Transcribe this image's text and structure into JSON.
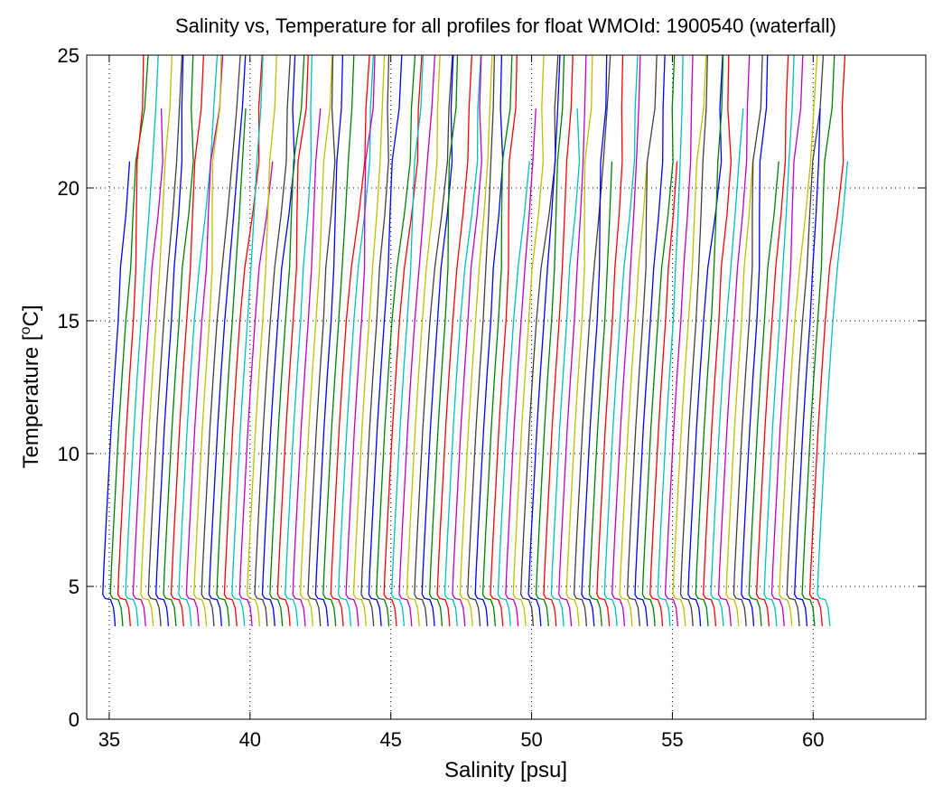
{
  "chart_data": {
    "type": "line",
    "title": "Salinity vs, Temperature for all profiles for float WMOId: 1900540 (waterfall)",
    "xlabel": "Salinity [psu]",
    "ylabel_main": "Temperature [",
    "ylabel_sup": "o",
    "ylabel_tail": "C]",
    "xlim": [
      34.2,
      64
    ],
    "ylim": [
      0,
      25
    ],
    "xticks": [
      35,
      40,
      45,
      50,
      55,
      60
    ],
    "yticks": [
      0,
      5,
      10,
      15,
      20,
      25
    ],
    "grid": true,
    "legend": "none",
    "waterfall": {
      "profile_count": 95,
      "offset_psu": 0.27,
      "base_salinity": 34.85,
      "profile_shape": {
        "temperature": [
          3.5,
          3.8,
          4.2,
          4.5,
          4.55,
          4.7,
          5.5,
          7,
          9,
          11,
          13,
          15,
          17,
          19,
          21,
          23,
          25
        ],
        "salinity": [
          35.36,
          35.34,
          35.3,
          35.2,
          35.0,
          34.92,
          34.95,
          35.02,
          35.12,
          35.22,
          35.34,
          35.47,
          35.6,
          35.74,
          35.86,
          35.97,
          36.05
        ]
      }
    },
    "series_colors": [
      "#0000ff",
      "#008000",
      "#ff0000",
      "#00bfbf",
      "#bf00bf",
      "#bfbf00",
      "#404040"
    ]
  }
}
